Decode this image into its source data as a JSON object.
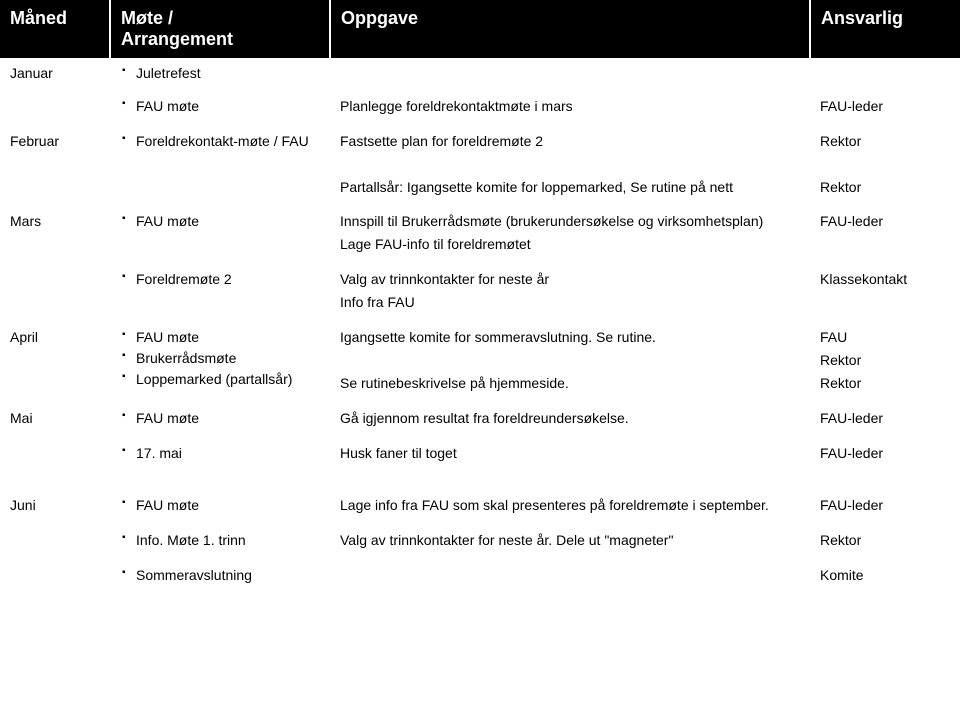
{
  "colors": {
    "header_bg": "#000000",
    "header_fg": "#ffffff",
    "body_fg": "#000000",
    "bullet_color": "#000000",
    "bg": "#ffffff"
  },
  "columns": {
    "month": "Måned",
    "meeting_line1": "Møte /",
    "meeting_line2": "Arrangement",
    "task": "Oppgave",
    "responsible": "Ansvarlig"
  },
  "rows": [
    {
      "month": "Januar",
      "meetings": [
        "Juletrefest"
      ],
      "task_lines": [],
      "responsible_lines": []
    },
    {
      "month": "",
      "meetings": [
        "FAU møte"
      ],
      "task_lines": [
        "Planlegge foreldrekontaktmøte i mars"
      ],
      "responsible_lines": [
        "FAU-leder"
      ]
    },
    {
      "month": "Februar",
      "meetings": [
        "Foreldrekontakt-møte / FAU"
      ],
      "task_lines": [
        "Fastsette plan for foreldremøte 2",
        "",
        "Partallsår: Igangsette komite for loppemarked, Se rutine på nett"
      ],
      "responsible_lines": [
        "Rektor",
        "",
        "Rektor"
      ]
    },
    {
      "month": "Mars",
      "meetings": [
        "FAU møte"
      ],
      "task_lines": [
        "Innspill til Brukerrådsmøte (brukerundersøkelse og virksomhetsplan)",
        "Lage FAU-info til foreldremøtet"
      ],
      "responsible_lines": [
        "FAU-leder"
      ]
    },
    {
      "month": "",
      "meetings": [
        "Foreldremøte 2"
      ],
      "task_lines": [
        "Valg av trinnkontakter for neste år",
        "Info fra FAU"
      ],
      "responsible_lines": [
        "Klassekontakt"
      ]
    },
    {
      "month": "April",
      "meetings": [
        "FAU møte",
        "Brukerrådsmøte",
        "Loppemarked (partallsår)"
      ],
      "task_lines": [
        "Igangsette komite for sommeravslutning. Se rutine.",
        "",
        "Se rutinebeskrivelse på hjemmeside."
      ],
      "responsible_lines": [
        "FAU",
        "Rektor",
        "Rektor"
      ]
    },
    {
      "month": "Mai",
      "meetings": [
        "FAU møte"
      ],
      "task_lines": [
        "Gå igjennom resultat fra foreldreundersøkelse."
      ],
      "responsible_lines": [
        "FAU-leder"
      ]
    },
    {
      "month": "",
      "meetings": [
        "17. mai"
      ],
      "task_lines": [
        "Husk faner til toget"
      ],
      "responsible_lines": [
        "FAU-leder"
      ]
    },
    {
      "month": "Juni",
      "meetings": [
        "FAU møte"
      ],
      "task_lines": [
        "Lage info fra FAU som skal presenteres på foreldremøte i september."
      ],
      "responsible_lines": [
        "FAU-leder"
      ]
    },
    {
      "month": "",
      "meetings": [
        "Info. Møte 1. trinn"
      ],
      "task_lines": [
        "Valg av trinnkontakter for neste år. Dele ut \"magneter\""
      ],
      "responsible_lines": [
        "Rektor"
      ]
    },
    {
      "month": "",
      "meetings": [
        "Sommeravslutning"
      ],
      "task_lines": [],
      "responsible_lines": [
        "Komite"
      ]
    }
  ],
  "spacers_after": [
    7
  ]
}
